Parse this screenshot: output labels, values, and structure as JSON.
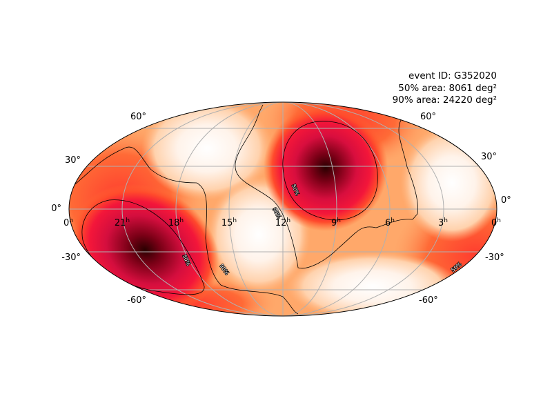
{
  "info": {
    "event_id": "event ID: G352020",
    "area_50": "50% area: 8061 deg²",
    "area_90": "90% area: 24220 deg²"
  },
  "colors": {
    "colormap": [
      "#ffffff",
      "#ffe4cc",
      "#ffad73",
      "#ff5a2a",
      "#f0123c",
      "#b00030",
      "#2a0000"
    ],
    "contour": "#000000",
    "graticule": "#b0b0b0",
    "frame": "#000000"
  },
  "chart_data": {
    "type": "heatmap",
    "projection": "mollweide",
    "ra_tick_labels": [
      {
        "text": "0",
        "sup": "h",
        "ra_hours": 24
      },
      {
        "text": "21",
        "sup": "h",
        "ra_hours": 21
      },
      {
        "text": "18",
        "sup": "h",
        "ra_hours": 18
      },
      {
        "text": "15",
        "sup": "h",
        "ra_hours": 15
      },
      {
        "text": "12",
        "sup": "h",
        "ra_hours": 12
      },
      {
        "text": "9",
        "sup": "h",
        "ra_hours": 9
      },
      {
        "text": "6",
        "sup": "h",
        "ra_hours": 6
      },
      {
        "text": "3",
        "sup": "h",
        "ra_hours": 3
      },
      {
        "text": "0",
        "sup": "h",
        "ra_hours": 0
      }
    ],
    "dec_tick_labels": [
      {
        "text": "60°",
        "dec": 60
      },
      {
        "text": "30°",
        "dec": 30
      },
      {
        "text": "0°",
        "dec": 0
      },
      {
        "text": "-30°",
        "dec": -30
      },
      {
        "text": "-60°",
        "dec": -60
      }
    ],
    "contour_labels": [
      {
        "text": "50%",
        "ra_hours": 10.6,
        "dec": 4
      },
      {
        "text": "90%",
        "ra_hours": 12.0,
        "dec": -3
      },
      {
        "text": "50%",
        "ra_hours": 17.9,
        "dec": -36
      },
      {
        "text": "90%",
        "ra_hours": 15.2,
        "dec": -43
      },
      {
        "text": "50%",
        "ra_hours": 0.9,
        "dec": -40
      }
    ],
    "probability_peaks": [
      {
        "ra_hours": 9.1,
        "dec": 30
      },
      {
        "ra_hours": 21.0,
        "dec": -30
      }
    ],
    "grid": true
  }
}
